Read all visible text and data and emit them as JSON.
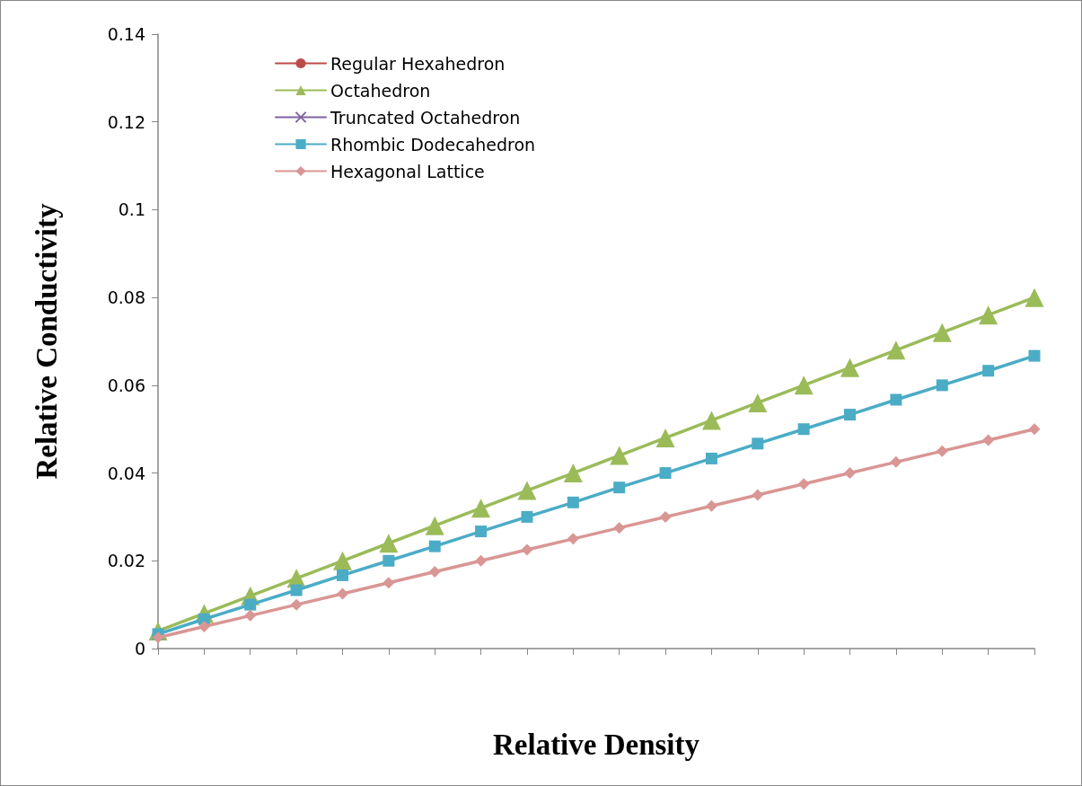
{
  "chart_data": {
    "type": "line",
    "xlabel": "Relative Density",
    "ylabel": "Relative Conductivity",
    "categories": [
      null,
      null,
      null,
      null,
      null,
      null,
      null,
      null,
      null,
      null,
      null,
      null,
      null,
      null,
      null,
      null,
      null,
      null,
      null,
      null
    ],
    "ylim": [
      0,
      0.14
    ],
    "yticks": [
      0,
      0.02,
      0.04,
      0.06,
      0.08,
      0.1,
      0.12,
      0.14
    ],
    "grid": false,
    "legend": "top left",
    "tick_labels": "y",
    "line_style": "solid",
    "series": [
      {
        "name": "Regular Hexahedron",
        "color": "#be4b48",
        "marker": "circle",
        "values": [
          null,
          null,
          null,
          null,
          null,
          null,
          null,
          null,
          null,
          null,
          null,
          null,
          null,
          null,
          null,
          null,
          null,
          null,
          null,
          null
        ]
      },
      {
        "name": "Octahedron",
        "color": "#9bbb59",
        "marker": "triangle",
        "values": [
          0.004,
          0.008,
          0.012,
          0.016,
          0.02,
          0.024,
          0.028,
          0.032,
          0.036,
          0.04,
          0.044,
          0.048,
          0.052,
          0.056,
          0.06,
          0.064,
          0.068,
          0.072,
          0.076,
          0.08
        ]
      },
      {
        "name": "Truncated Octahedron",
        "color": "#7f62a1",
        "marker": "cross",
        "values": [
          null,
          null,
          null,
          null,
          null,
          null,
          null,
          null,
          null,
          null,
          null,
          null,
          null,
          null,
          null,
          null,
          null,
          null,
          null,
          null
        ]
      },
      {
        "name": "Rhombic Dodecahedron",
        "color": "#4bacc6",
        "marker": "square",
        "values": [
          0.0033,
          0.0067,
          0.01,
          0.0133,
          0.0167,
          0.02,
          0.0233,
          0.0267,
          0.03,
          0.0333,
          0.0367,
          0.04,
          0.0433,
          0.0467,
          0.05,
          0.0533,
          0.0567,
          0.06,
          0.0633,
          0.0667
        ]
      },
      {
        "name": "Hexagonal Lattice",
        "color": "#d99694",
        "marker": "diamond",
        "values": [
          0.0025,
          0.005,
          0.0075,
          0.01,
          0.0125,
          0.015,
          0.0175,
          0.02,
          0.0225,
          0.025,
          0.0275,
          0.03,
          0.0325,
          0.035,
          0.0375,
          0.04,
          0.0425,
          0.045,
          0.0475,
          0.05
        ]
      }
    ]
  }
}
